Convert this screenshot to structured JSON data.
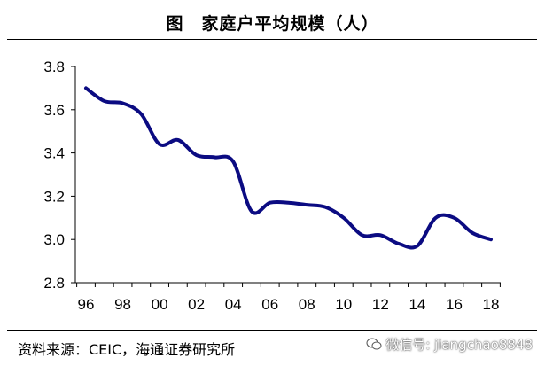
{
  "title": "图　家庭户平均规模（人）",
  "source": "资料来源：CEIC，海通证券研究所",
  "watermark": "微信号: jiangchao8848",
  "colors": {
    "line": "#0b0b82",
    "axis": "#000000"
  },
  "chart_data": {
    "type": "line",
    "title": "图　家庭户平均规模（人）",
    "xlabel": "",
    "ylabel": "",
    "xlim": [
      1996,
      2018
    ],
    "ylim": [
      2.8,
      3.8
    ],
    "y_ticks": [
      2.8,
      3.0,
      3.2,
      3.4,
      3.6,
      3.8
    ],
    "y_tick_labels": [
      "2.8",
      "3.0",
      "3.2",
      "3.4",
      "3.6",
      "3.8"
    ],
    "x_ticks": [
      1996,
      1998,
      2000,
      2002,
      2004,
      2006,
      2008,
      2010,
      2012,
      2014,
      2016,
      2018
    ],
    "x_tick_labels": [
      "96",
      "98",
      "00",
      "02",
      "04",
      "06",
      "08",
      "10",
      "12",
      "14",
      "16",
      "18"
    ],
    "grid": false,
    "series": [
      {
        "x": [
          1996,
          1997,
          1998,
          1999,
          2000,
          2001,
          2002,
          2003,
          2004,
          2005,
          2006,
          2007,
          2008,
          2009,
          2010,
          2011,
          2012,
          2013,
          2014,
          2015,
          2016,
          2017,
          2018
        ],
        "values": [
          3.7,
          3.64,
          3.63,
          3.58,
          3.44,
          3.46,
          3.39,
          3.38,
          3.36,
          3.13,
          3.17,
          3.17,
          3.16,
          3.15,
          3.1,
          3.02,
          3.02,
          2.98,
          2.97,
          3.1,
          3.1,
          3.03,
          3.0
        ]
      }
    ]
  }
}
